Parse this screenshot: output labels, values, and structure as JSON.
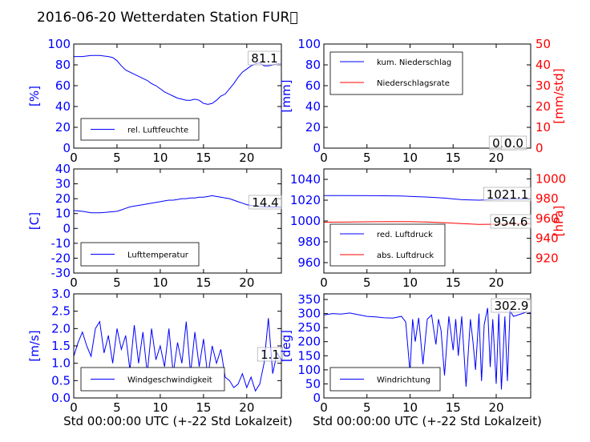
{
  "title": "2016-06-20 Wetterdaten Station FUR\u0000",
  "xlabel": "Std 00:00:00 UTC (+-22 Std Lokalzeit)",
  "colors": {
    "blue": "#0000ff",
    "red": "#ff0000",
    "black": "#000000"
  },
  "chart_data": [
    {
      "type": "line",
      "xlim": [
        0,
        24
      ],
      "xticks": [
        0,
        5,
        10,
        15,
        20
      ],
      "ylim": [
        0,
        100
      ],
      "yticks": [
        0,
        20,
        40,
        60,
        80,
        100
      ],
      "ylabel": "[%]",
      "series": [
        {
          "name": "rel. Luftfeuchte",
          "color": "#0000ff",
          "x": [
            0,
            1,
            2,
            3,
            4,
            4.5,
            5,
            5.5,
            6,
            6.5,
            7,
            7.5,
            8,
            8.5,
            9,
            9.5,
            10,
            10.5,
            11,
            11.5,
            12,
            12.5,
            13,
            13.5,
            14,
            14.5,
            15,
            15.5,
            16,
            16.5,
            17,
            17.5,
            18,
            18.5,
            19,
            19.5,
            20,
            20.5,
            21,
            21.5,
            22,
            22.5,
            23,
            23.5,
            24
          ],
          "y": [
            88,
            88,
            89,
            89,
            88,
            87,
            84,
            79,
            75,
            73,
            71,
            69,
            67,
            65,
            62,
            60,
            57,
            54,
            52,
            50,
            48,
            47,
            46,
            46,
            47,
            46,
            43,
            42,
            43,
            46,
            50,
            52,
            57,
            62,
            68,
            73,
            76,
            79,
            81,
            82,
            79,
            79,
            80,
            81,
            81
          ]
        }
      ],
      "annotation": "81.1"
    },
    {
      "type": "line",
      "xlim": [
        0,
        24
      ],
      "xticks": [
        0,
        5,
        10,
        15,
        20
      ],
      "ylim": [
        0,
        100
      ],
      "yticks": [
        0,
        20,
        40,
        60,
        80,
        100
      ],
      "ylabel": "[mm]",
      "ylim_right": [
        0,
        50
      ],
      "yticks_right": [
        0,
        10,
        20,
        30,
        40,
        50
      ],
      "ylabel_right": "[mm/std]",
      "series": [
        {
          "name": "kum. Niederschlag",
          "color": "#0000ff",
          "x": [
            0,
            24
          ],
          "y": [
            0,
            0
          ]
        },
        {
          "name": "Niederschlagsrate",
          "color": "#ff0000",
          "axis": "right",
          "x": [
            0,
            24
          ],
          "y": [
            0,
            0
          ]
        }
      ],
      "annotations": [
        "0.0",
        "0.0"
      ]
    },
    {
      "type": "line",
      "xlim": [
        0,
        24
      ],
      "xticks": [
        0,
        5,
        10,
        15,
        20
      ],
      "ylim": [
        -30,
        40
      ],
      "yticks": [
        -30,
        -20,
        -10,
        0,
        10,
        20,
        30,
        40
      ],
      "ylabel": "[C]",
      "series": [
        {
          "name": "Lufttemperatur",
          "color": "#0000ff",
          "x": [
            0,
            1,
            2,
            3,
            4,
            5,
            5.5,
            6,
            6.5,
            7,
            7.5,
            8,
            8.5,
            9,
            9.5,
            10,
            10.5,
            11,
            11.5,
            12,
            12.5,
            13,
            13.5,
            14,
            14.5,
            15,
            15.5,
            16,
            16.5,
            17,
            17.5,
            18,
            18.5,
            19,
            19.5,
            20,
            20.5,
            21,
            22,
            23,
            24
          ],
          "y": [
            12,
            11.5,
            10.5,
            10.5,
            11,
            11.5,
            12.5,
            13.5,
            14.5,
            15,
            15.5,
            16,
            16.5,
            17,
            17.5,
            18,
            18.5,
            19,
            19,
            19.5,
            20,
            20,
            20.5,
            20.5,
            21,
            21,
            21.5,
            22,
            21.5,
            21,
            20.5,
            20,
            19,
            18,
            17,
            16,
            15.5,
            15,
            14.5,
            14.4,
            14.4
          ]
        }
      ],
      "annotation": "14.4"
    },
    {
      "type": "line",
      "xlim": [
        0,
        24
      ],
      "xticks": [
        0,
        5,
        10,
        15,
        20
      ],
      "ylim": [
        950,
        1050
      ],
      "yticks": [
        960,
        980,
        1000,
        1020,
        1040
      ],
      "ylim_right": [
        905,
        1010
      ],
      "yticks_right": [
        920,
        940,
        960,
        980,
        1000
      ],
      "ylabel_right": "[hPa]",
      "series": [
        {
          "name": "red. Luftdruck",
          "color": "#0000ff",
          "x": [
            0,
            3,
            6,
            9,
            12,
            14,
            16,
            18,
            20,
            22,
            24
          ],
          "y": [
            1024.5,
            1024.5,
            1024.3,
            1024,
            1023,
            1022,
            1020.5,
            1020,
            1020.8,
            1021.1,
            1021.1
          ]
        },
        {
          "name": "abs. Luftdruck",
          "color": "#ff0000",
          "axis": "right",
          "x": [
            0,
            3,
            6,
            9,
            12,
            14,
            16,
            18,
            20,
            22,
            24
          ],
          "y": [
            956.3,
            956.5,
            956.8,
            956.9,
            956.5,
            955.8,
            954.9,
            954,
            954.3,
            954.6,
            954.6
          ]
        }
      ],
      "annotations": [
        "1021.1",
        "954.6"
      ]
    },
    {
      "type": "line",
      "xlim": [
        0,
        24
      ],
      "xticks": [
        0,
        5,
        10,
        15,
        20
      ],
      "ylim": [
        0,
        3.0
      ],
      "yticks": [
        0.0,
        0.5,
        1.0,
        1.5,
        2.0,
        2.5,
        3.0
      ],
      "ylabel": "[m/s]",
      "series": [
        {
          "name": "Windgeschwindigkeit",
          "color": "#0000ff",
          "x": [
            0,
            0.5,
            1,
            1.5,
            2,
            2.5,
            3,
            3.5,
            4,
            4.5,
            5,
            5.5,
            6,
            6.5,
            7,
            7.5,
            8,
            8.5,
            9,
            9.5,
            10,
            10.5,
            11,
            11.5,
            12,
            12.5,
            13,
            13.5,
            14,
            14.5,
            15,
            15.5,
            16,
            16.5,
            17,
            17.5,
            18,
            18.5,
            19,
            19.5,
            20,
            20.5,
            21,
            21.5,
            22,
            22.5,
            23,
            23.5,
            24
          ],
          "y": [
            1.2,
            1.6,
            1.9,
            1.5,
            1.2,
            2.0,
            2.2,
            1.3,
            1.8,
            1.0,
            2.0,
            1.4,
            1.8,
            0.8,
            2.1,
            1.0,
            1.9,
            0.7,
            2.0,
            1.1,
            1.5,
            0.9,
            2.0,
            0.7,
            1.6,
            1.0,
            2.2,
            0.7,
            1.9,
            0.9,
            1.7,
            0.6,
            1.5,
            1.0,
            1.4,
            0.6,
            0.5,
            0.3,
            0.4,
            0.7,
            0.3,
            0.6,
            0.2,
            0.4,
            1.0,
            2.3,
            0.7,
            1.3,
            1.1
          ]
        }
      ],
      "annotation": "1.1"
    },
    {
      "type": "line",
      "xlim": [
        0,
        24
      ],
      "xticks": [
        0,
        5,
        10,
        15,
        20
      ],
      "ylim": [
        0,
        370
      ],
      "yticks": [
        0,
        50,
        100,
        150,
        200,
        250,
        300,
        350
      ],
      "ylabel": "[deg]",
      "series": [
        {
          "name": "Windrichtung",
          "color": "#0000ff",
          "x": [
            0,
            1,
            2,
            3,
            4,
            5,
            6,
            7,
            8,
            9,
            9.5,
            10,
            10.3,
            10.6,
            11,
            11.5,
            12,
            12.5,
            13,
            13.3,
            13.6,
            14,
            14.5,
            15,
            15.3,
            15.6,
            16,
            16.5,
            17,
            17.3,
            17.6,
            18,
            18.3,
            18.6,
            19,
            19.3,
            19.6,
            20,
            20.3,
            20.6,
            21,
            21.3,
            21.6,
            22,
            22.5,
            23,
            23.5,
            24
          ],
          "y": [
            295,
            300,
            298,
            302,
            296,
            290,
            288,
            285,
            284,
            290,
            270,
            90,
            280,
            200,
            285,
            120,
            280,
            295,
            190,
            280,
            240,
            80,
            290,
            170,
            280,
            150,
            290,
            40,
            280,
            200,
            100,
            300,
            60,
            260,
            320,
            110,
            280,
            50,
            300,
            30,
            290,
            60,
            310,
            290,
            295,
            300,
            305,
            302.9
          ]
        }
      ],
      "annotation": "302.9"
    }
  ]
}
